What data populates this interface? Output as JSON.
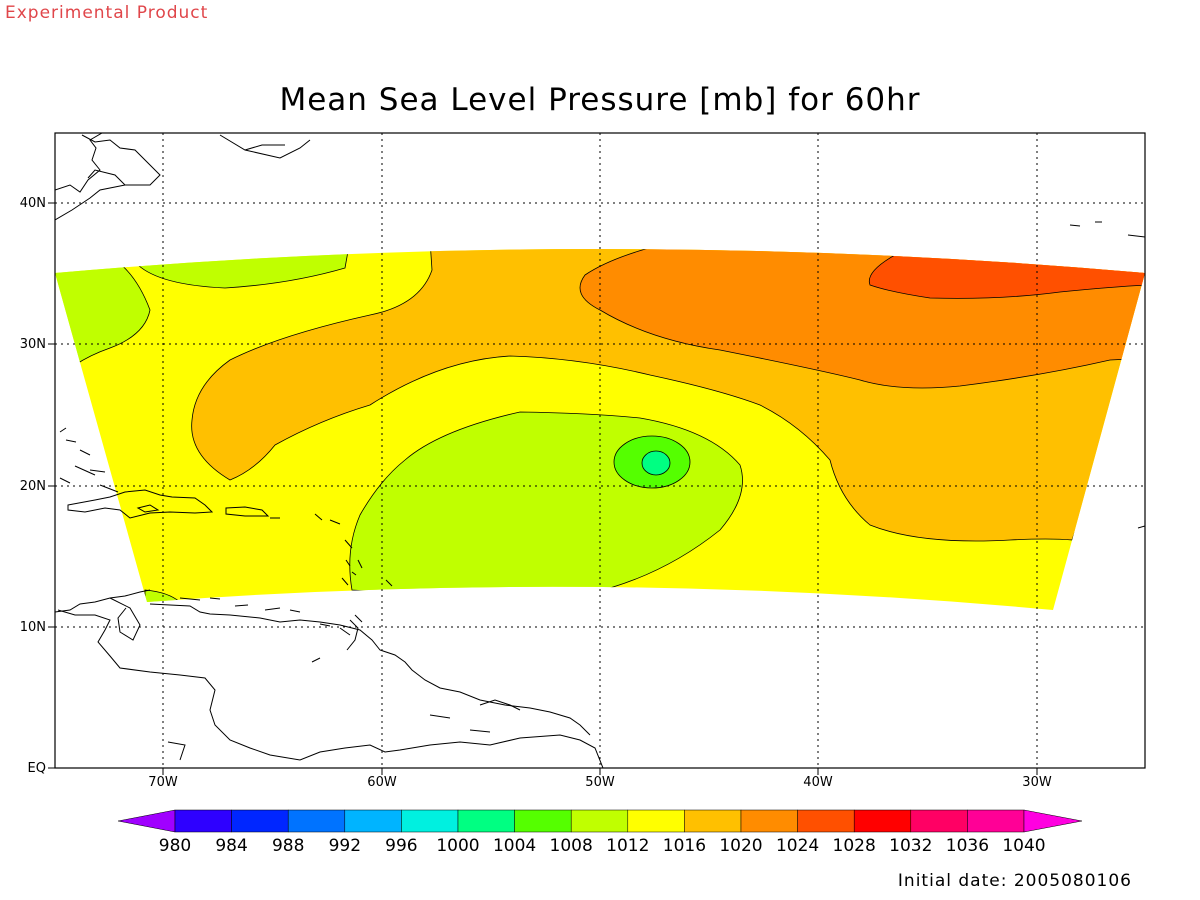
{
  "header": {
    "product_label": "Experimental Product",
    "title": "Mean Sea Level Pressure [mb] for 60hr"
  },
  "axes": {
    "lat_labels": [
      "40N",
      "30N",
      "20N",
      "10N",
      "EQ"
    ],
    "lon_labels": [
      "70W",
      "60W",
      "50W",
      "40W",
      "30W"
    ]
  },
  "colorbar": {
    "levels": [
      "980",
      "984",
      "988",
      "992",
      "996",
      "1000",
      "1004",
      "1008",
      "1012",
      "1016",
      "1020",
      "1024",
      "1028",
      "1032",
      "1036",
      "1040"
    ],
    "colors": [
      "#a000ff",
      "#2e00ff",
      "#0026ff",
      "#0073ff",
      "#00b4ff",
      "#00f0e0",
      "#00ff82",
      "#55ff00",
      "#c0ff00",
      "#ffff00",
      "#ffc000",
      "#ff8c00",
      "#ff5000",
      "#ff0000",
      "#ff0064",
      "#ff0096",
      "#ff00e0"
    ]
  },
  "footer": {
    "initial_date": "Initial date: 2005080106"
  }
}
